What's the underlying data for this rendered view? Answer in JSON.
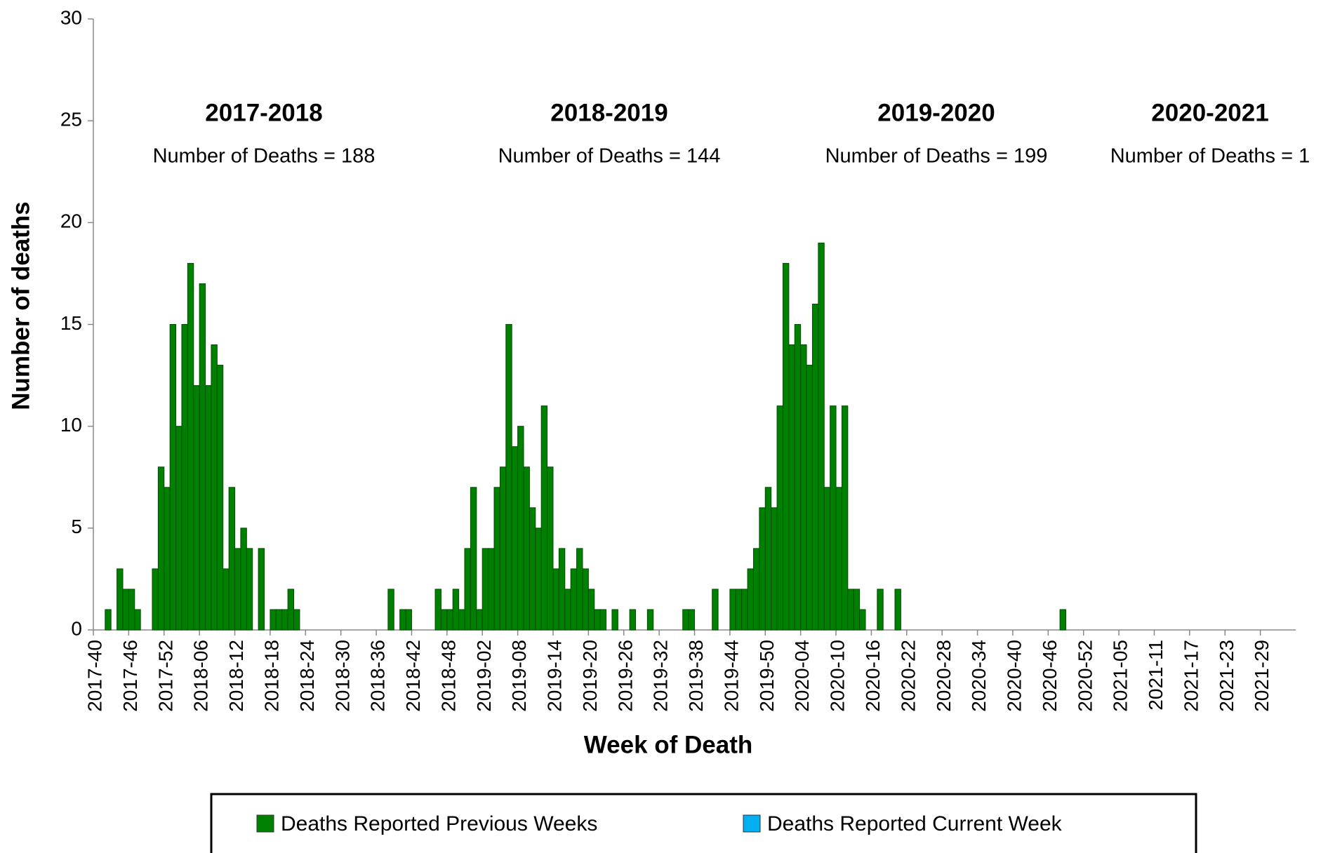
{
  "chart_data": {
    "type": "bar",
    "stacked": true,
    "y_label": "Number of deaths",
    "x_label": "Week of Death",
    "categories": [
      "2017-40",
      null,
      null,
      null,
      null,
      null,
      "2017-46",
      null,
      null,
      null,
      null,
      null,
      "2017-52",
      null,
      null,
      null,
      null,
      null,
      "2018-06",
      null,
      null,
      null,
      null,
      null,
      "2018-12",
      null,
      null,
      null,
      null,
      null,
      "2018-18",
      null,
      null,
      null,
      null,
      null,
      "2018-24",
      null,
      null,
      null,
      null,
      null,
      "2018-30",
      null,
      null,
      null,
      null,
      null,
      "2018-36",
      null,
      null,
      null,
      null,
      null,
      "2018-42",
      null,
      null,
      null,
      null,
      null,
      "2018-48",
      null,
      null,
      null,
      null,
      null,
      "2019-02",
      null,
      null,
      null,
      null,
      null,
      "2019-08",
      null,
      null,
      null,
      null,
      null,
      "2019-14",
      null,
      null,
      null,
      null,
      null,
      "2019-20",
      null,
      null,
      null,
      null,
      null,
      "2019-26",
      null,
      null,
      null,
      null,
      null,
      "2019-32",
      null,
      null,
      null,
      null,
      null,
      "2019-38",
      null,
      null,
      null,
      null,
      null,
      "2019-44",
      null,
      null,
      null,
      null,
      null,
      "2019-50",
      null,
      null,
      null,
      null,
      null,
      "2020-04",
      null,
      null,
      null,
      null,
      null,
      "2020-10",
      null,
      null,
      null,
      null,
      null,
      "2020-16",
      null,
      null,
      null,
      null,
      null,
      "2020-22",
      null,
      null,
      null,
      null,
      null,
      "2020-28",
      null,
      null,
      null,
      null,
      null,
      "2020-34",
      null,
      null,
      null,
      null,
      null,
      "2020-40",
      null,
      null,
      null,
      null,
      null,
      "2020-46",
      null,
      null,
      null,
      null,
      null,
      "2020-52",
      null,
      null,
      null,
      null,
      null,
      "2021-05",
      null,
      null,
      null,
      null,
      null,
      "2021-11",
      null,
      null,
      null,
      null,
      null,
      "2021-17",
      null,
      null,
      null,
      null,
      null,
      "2021-23",
      null,
      null,
      null,
      null,
      null,
      "2021-29",
      null,
      null,
      null,
      null,
      null
    ],
    "series": [
      {
        "name": "Deaths Reported Previous Weeks",
        "color": "#008000",
        "values": [
          0,
          0,
          1,
          0,
          3,
          2,
          2,
          1,
          0,
          0,
          3,
          8,
          7,
          15,
          10,
          15,
          18,
          12,
          17,
          12,
          14,
          13,
          3,
          7,
          4,
          5,
          4,
          0,
          4,
          0,
          1,
          1,
          1,
          2,
          1,
          0,
          0,
          0,
          0,
          0,
          0,
          0,
          0,
          0,
          0,
          0,
          0,
          0,
          0,
          0,
          2,
          0,
          1,
          1,
          0,
          0,
          0,
          0,
          2,
          1,
          1,
          2,
          1,
          4,
          7,
          1,
          4,
          4,
          7,
          8,
          15,
          9,
          10,
          8,
          6,
          5,
          11,
          8,
          3,
          4,
          2,
          3,
          4,
          3,
          2,
          1,
          1,
          0,
          1,
          0,
          0,
          1,
          0,
          0,
          1,
          0,
          0,
          0,
          0,
          0,
          1,
          1,
          0,
          0,
          0,
          2,
          0,
          0,
          2,
          2,
          2,
          3,
          4,
          6,
          7,
          6,
          11,
          18,
          14,
          15,
          14,
          13,
          16,
          19,
          7,
          11,
          7,
          11,
          2,
          2,
          1,
          0,
          0,
          2,
          0,
          0,
          2,
          0,
          0,
          0,
          0,
          0,
          0,
          0,
          0,
          0,
          0,
          0,
          0,
          0,
          0,
          0,
          0,
          0,
          0,
          0,
          0,
          0,
          0,
          0,
          0,
          0,
          0,
          0,
          1,
          0,
          0,
          0,
          0,
          0,
          0,
          0,
          0,
          0,
          0,
          0,
          0,
          0,
          0,
          0,
          0,
          0,
          0,
          0,
          0,
          0,
          0,
          0,
          0,
          0,
          0,
          0,
          0,
          0,
          0,
          0,
          0,
          0,
          0,
          0,
          0,
          0,
          0,
          0
        ]
      },
      {
        "name": "Deaths Reported Current Week",
        "color": "#00b0f0",
        "values": [
          0,
          0,
          0,
          0,
          0,
          0,
          0,
          0,
          0,
          0,
          0,
          0,
          0,
          0,
          0,
          0,
          0,
          0,
          0,
          0,
          0,
          0,
          0,
          0,
          0,
          0,
          0,
          0,
          0,
          0,
          0,
          0,
          0,
          0,
          0,
          0,
          0,
          0,
          0,
          0,
          0,
          0,
          0,
          0,
          0,
          0,
          0,
          0,
          0,
          0,
          0,
          0,
          0,
          0,
          0,
          0,
          0,
          0,
          0,
          0,
          0,
          0,
          0,
          0,
          0,
          0,
          0,
          0,
          0,
          0,
          0,
          0,
          0,
          0,
          0,
          0,
          0,
          0,
          0,
          0,
          0,
          0,
          0,
          0,
          0,
          0,
          0,
          0,
          0,
          0,
          0,
          0,
          0,
          0,
          0,
          0,
          0,
          0,
          0,
          0,
          0,
          0,
          0,
          0,
          0,
          0,
          0,
          0,
          0,
          0,
          0,
          0,
          0,
          0,
          0,
          0,
          0,
          0,
          0,
          0,
          0,
          0,
          0,
          0,
          0,
          0,
          0,
          0,
          0,
          0,
          0,
          0,
          0,
          0,
          0,
          0,
          0,
          0,
          0,
          0,
          0,
          0,
          0,
          0,
          0,
          0,
          0,
          0,
          0,
          0,
          0,
          0,
          0,
          0,
          0,
          0,
          0,
          0,
          0,
          0,
          0,
          0,
          0,
          0,
          0,
          0,
          0,
          0,
          0,
          0,
          0,
          0,
          0,
          0,
          0,
          0,
          0,
          0,
          0,
          0,
          0,
          0,
          0,
          0,
          0,
          0,
          0,
          0,
          0,
          0,
          0,
          0,
          0,
          0,
          0,
          0,
          0,
          0,
          0,
          0,
          0,
          0,
          0,
          0
        ]
      }
    ],
    "ylim": [
      0,
      30
    ],
    "yticks": [
      0,
      5,
      10,
      15,
      20,
      25,
      30
    ],
    "grid": false,
    "annotations": [
      {
        "title": "2017-2018",
        "text": "Number of Deaths = 188"
      },
      {
        "title": "2018-2019",
        "text": "Number of Deaths = 144"
      },
      {
        "title": "2019-2020",
        "text": "Number of Deaths = 199"
      },
      {
        "title": "2020-2021",
        "text": "Number of Deaths = 1"
      }
    ]
  }
}
